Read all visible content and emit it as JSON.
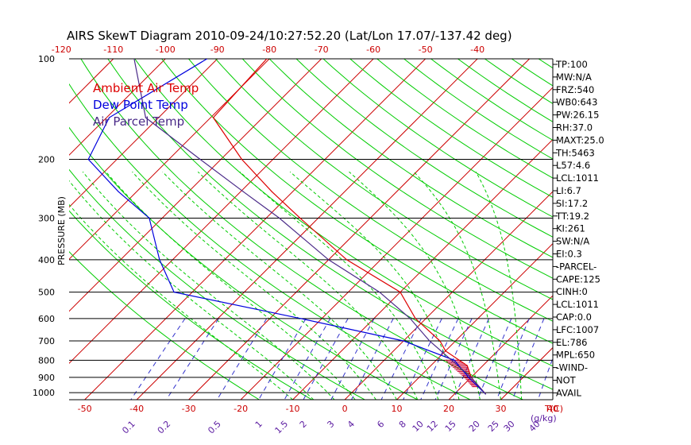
{
  "chart_data": {
    "type": "line",
    "title": "AIRS SkewT Diagram 2010-09-24/10:27:52.20 (Lat/Lon 17.07/-137.42 deg)",
    "ylabel": "PRESSURE (MB)",
    "xlabel": "T(C)",
    "mix_unit_label": "(g/kg)",
    "p_range": [
      100,
      1050
    ],
    "t_range_at_bottom": [
      -53,
      40
    ],
    "pressure_ticks": [
      "100",
      "200",
      "300",
      "400",
      "500",
      "600",
      "700",
      "800",
      "900",
      "1000"
    ],
    "top_temp_ticks": [
      "-120",
      "-110",
      "-100",
      "-90",
      "-80",
      "-70",
      "-60",
      "-50",
      "-40"
    ],
    "bottom_temp_ticks": [
      "-50",
      "-40",
      "-30",
      "-20",
      "-10",
      "0",
      "10",
      "20",
      "30",
      "40"
    ],
    "mixing_ratio_labels": [
      "0.1",
      "0.2",
      "0.5",
      "1",
      "1.5",
      "2",
      "3",
      "4",
      "6",
      "8",
      "10",
      "12",
      "15",
      "20",
      "25",
      "30",
      "40"
    ],
    "legend": [
      {
        "name": "Ambient Air Temp",
        "color": "#dd0000"
      },
      {
        "name": "Dew Point Temp",
        "color": "#0000dd"
      },
      {
        "name": "Air Parcel Temp",
        "color": "#4a2a88"
      }
    ],
    "colors": {
      "isotherm": "#cc0000",
      "dry_adiabat": "#00cc00",
      "moist_adiabat": "#00cc00",
      "mixing_ratio": "#3333cc",
      "isobar": "#000000",
      "cape_hatch": "#cc0033"
    },
    "series": [
      {
        "name": "Ambient Air Temp",
        "points": [
          {
            "p": 100,
            "t": -80.5
          },
          {
            "p": 150,
            "t": -79.5
          },
          {
            "p": 200,
            "t": -66.0
          },
          {
            "p": 250,
            "t": -54.0
          },
          {
            "p": 300,
            "t": -43.5
          },
          {
            "p": 400,
            "t": -26.5
          },
          {
            "p": 500,
            "t": -10.0
          },
          {
            "p": 600,
            "t": -2.0
          },
          {
            "p": 700,
            "t": 7.0
          },
          {
            "p": 750,
            "t": 10.0
          },
          {
            "p": 830,
            "t": 17.0
          },
          {
            "p": 900,
            "t": 20.0
          },
          {
            "p": 1010,
            "t": 26.0
          }
        ]
      },
      {
        "name": "Dew Point Temp",
        "points": [
          {
            "p": 100,
            "t": -92.0
          },
          {
            "p": 150,
            "t": -99.5
          },
          {
            "p": 200,
            "t": -95.5
          },
          {
            "p": 250,
            "t": -83.5
          },
          {
            "p": 300,
            "t": -72.5
          },
          {
            "p": 400,
            "t": -62.5
          },
          {
            "p": 500,
            "t": -53.5
          },
          {
            "p": 600,
            "t": -24.0
          },
          {
            "p": 700,
            "t": 0.0
          },
          {
            "p": 800,
            "t": 13.5
          },
          {
            "p": 900,
            "t": 19.5
          },
          {
            "p": 1010,
            "t": 26.0
          }
        ]
      },
      {
        "name": "Air Parcel Temp",
        "points": [
          {
            "p": 100,
            "t": -106.0
          },
          {
            "p": 150,
            "t": -92.5
          },
          {
            "p": 200,
            "t": -74.0
          },
          {
            "p": 250,
            "t": -59.5
          },
          {
            "p": 300,
            "t": -47.5
          },
          {
            "p": 400,
            "t": -30.0
          },
          {
            "p": 500,
            "t": -14.0
          },
          {
            "p": 600,
            "t": -3.0
          },
          {
            "p": 700,
            "t": 5.0
          },
          {
            "p": 800,
            "t": 13.0
          },
          {
            "p": 900,
            "t": 20.0
          },
          {
            "p": 1010,
            "t": 26.0
          }
        ]
      }
    ],
    "indices": [
      "TP:100",
      "MW:N/A",
      "FRZ:540",
      "WB0:643",
      "PW:26.15",
      "RH:37.0",
      "MAXT:25.0",
      "TH:5463",
      "L57:4.6",
      "LCL:1011",
      "LI:6.7",
      "SI:17.2",
      "TT:19.2",
      "KI:261",
      "SW:N/A",
      "EI:0.3",
      "-PARCEL-",
      "CAPE:125",
      "CINH:0",
      "LCL:1011",
      "CAP:0.0",
      "LFC:1007",
      "EL:786",
      "MPL:650",
      "-WIND-",
      "NOT",
      "AVAIL"
    ]
  }
}
